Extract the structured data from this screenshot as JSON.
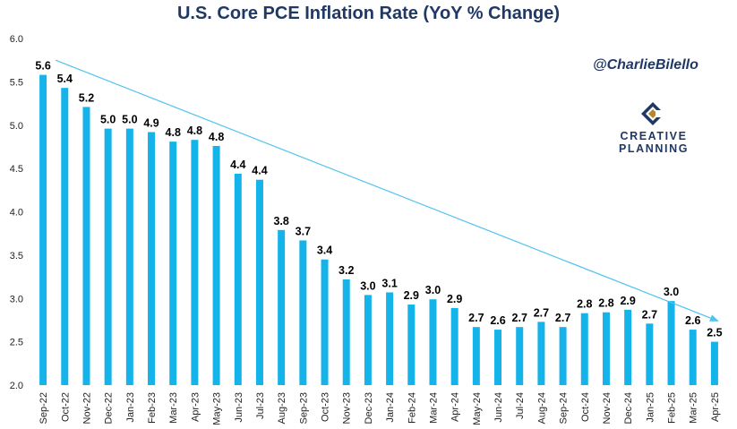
{
  "chart_data": {
    "type": "bar",
    "title": "U.S. Core PCE Inflation Rate (YoY % Change)",
    "xlabel": "",
    "ylabel": "",
    "ylim": [
      2.0,
      6.0
    ],
    "yticks": [
      "2.0",
      "2.5",
      "3.0",
      "3.5",
      "4.0",
      "4.5",
      "5.0",
      "5.5",
      "6.0"
    ],
    "grid": false,
    "legend": "none",
    "bar_color": "#14b4ea",
    "trend_color": "#4fc3ee",
    "categories": [
      "Sep-22",
      "Oct-22",
      "Nov-22",
      "Dec-22",
      "Jan-23",
      "Feb-23",
      "Mar-23",
      "Apr-23",
      "May-23",
      "Jun-23",
      "Jul-23",
      "Aug-23",
      "Sep-23",
      "Oct-23",
      "Nov-23",
      "Dec-23",
      "Jan-24",
      "Feb-24",
      "Mar-24",
      "Apr-24",
      "May-24",
      "Jun-24",
      "Jul-24",
      "Aug-24",
      "Sep-24",
      "Oct-24",
      "Nov-24",
      "Dec-24",
      "Jan-25",
      "Feb-25",
      "Mar-25",
      "Apr-25"
    ],
    "values": [
      5.58,
      5.43,
      5.21,
      4.96,
      4.96,
      4.92,
      4.81,
      4.83,
      4.76,
      4.44,
      4.37,
      3.79,
      3.67,
      3.45,
      3.22,
      3.04,
      3.07,
      2.93,
      2.99,
      2.89,
      2.67,
      2.64,
      2.67,
      2.73,
      2.67,
      2.83,
      2.84,
      2.87,
      2.71,
      2.97,
      2.64,
      2.5
    ],
    "data_labels": [
      "5.6",
      "5.4",
      "5.2",
      "5.0",
      "5.0",
      "4.9",
      "4.8",
      "4.8",
      "4.8",
      "4.4",
      "4.4",
      "3.8",
      "3.7",
      "3.4",
      "3.2",
      "3.0",
      "3.1",
      "2.9",
      "3.0",
      "2.9",
      "2.7",
      "2.6",
      "2.7",
      "2.7",
      "2.7",
      "2.8",
      "2.8",
      "2.9",
      "2.7",
      "3.0",
      "2.6",
      "2.5"
    ],
    "annotations": [
      {
        "type": "trend-arrow",
        "from": {
          "x": "Sep-22",
          "y": 5.75
        },
        "to": {
          "x": "Apr-25",
          "y": 2.74
        }
      }
    ]
  },
  "watermark": {
    "handle": "@CharlieBilello",
    "logo_line1": "CREATIVE",
    "logo_line2": "PLANNING",
    "logo_icon": "c-logo-icon",
    "logo_colors": {
      "navy": "#1f3864",
      "gold": "#b8862b"
    }
  }
}
